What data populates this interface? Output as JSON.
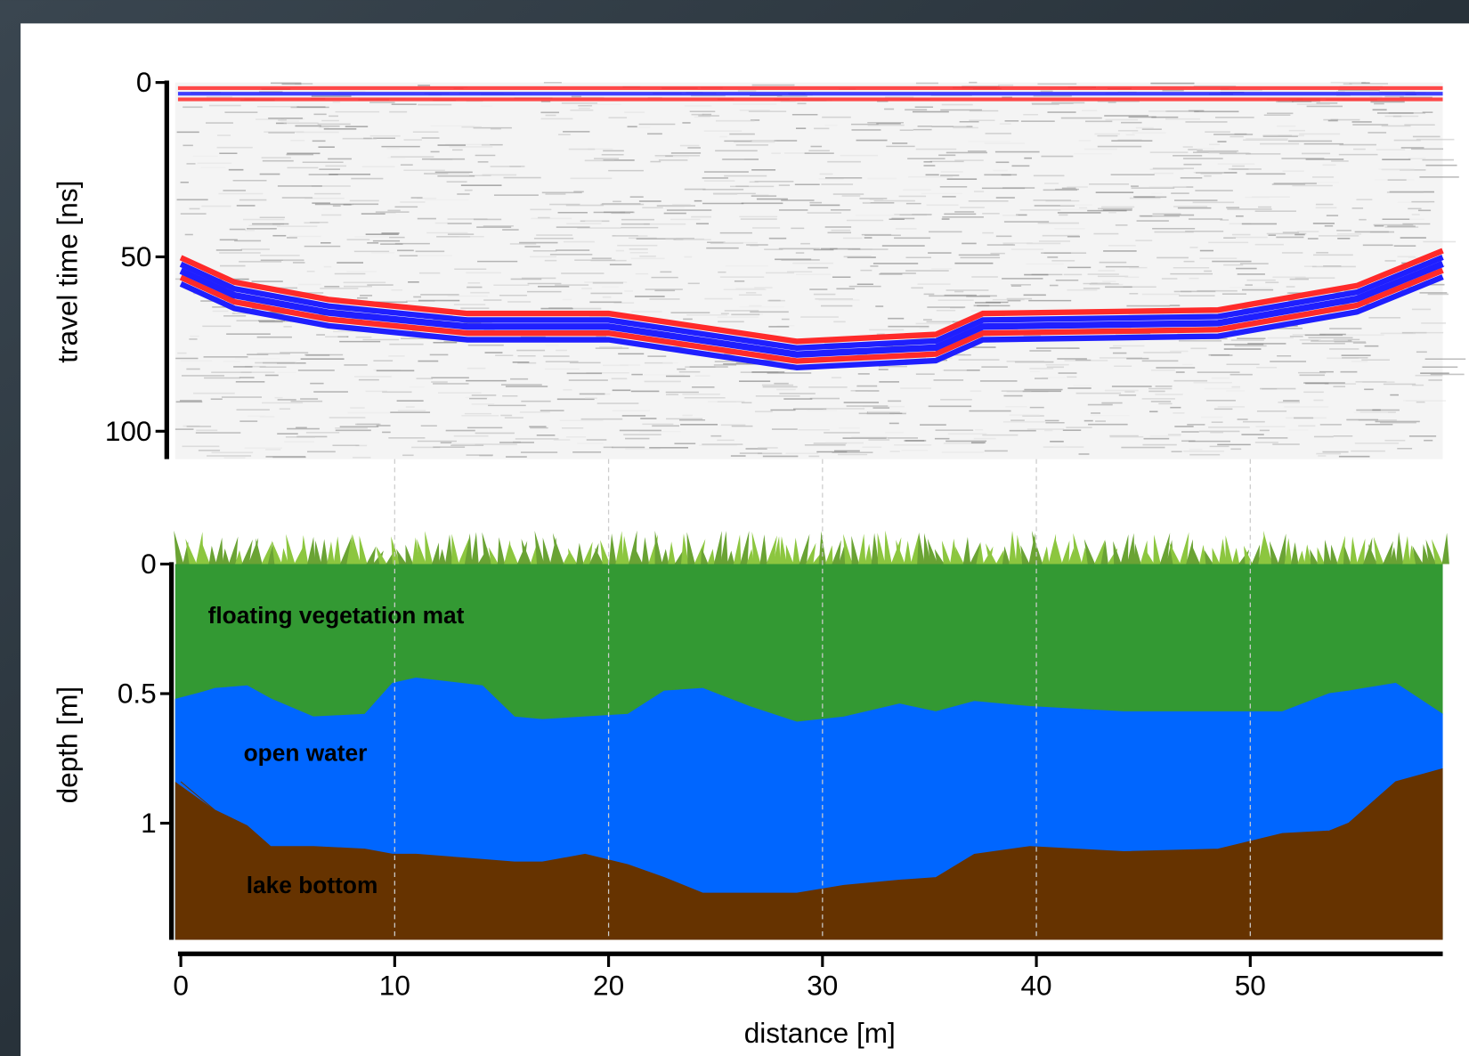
{
  "chart_data": [
    {
      "type": "line",
      "ylabel": "travel time [ns]",
      "xlim": [
        0,
        59
      ],
      "ylim": [
        0,
        108
      ],
      "yticks": [
        0,
        50,
        100
      ],
      "invert_y": true,
      "band_colors": [
        "#ff2a2a",
        "#1f1fff"
      ],
      "x": [
        0,
        2.5,
        6.9,
        13.4,
        20.0,
        28.8,
        35.3,
        37.5,
        48.5,
        55.0,
        59
      ],
      "series": [
        {
          "color": "#1f1fff",
          "values": [
            54,
            61,
            66,
            70,
            70,
            78,
            76,
            70,
            69,
            62,
            52
          ]
        }
      ]
    },
    {
      "type": "area",
      "xlabel": "distance [m]",
      "ylabel": "depth [m]",
      "xlim": [
        0,
        59
      ],
      "ylim": [
        0,
        1.45
      ],
      "xticks": [
        0,
        10,
        20,
        30,
        40,
        50
      ],
      "yticks": [
        0,
        0.5,
        1
      ],
      "invert_y": true,
      "x": [
        0,
        1.6,
        3.1,
        4.2,
        6.2,
        8.6,
        9.9,
        11.0,
        14.1,
        15.6,
        16.9,
        18.9,
        20.9,
        22.6,
        24.4,
        26.6,
        28.8,
        31.0,
        33.6,
        35.3,
        37.1,
        39.7,
        44.1,
        48.5,
        51.5,
        53.7,
        54.6,
        56.8,
        59
      ],
      "series": [
        {
          "name": "floating vegetation mat",
          "color": "#339933",
          "values": [
            0.52,
            0.48,
            0.47,
            0.52,
            0.59,
            0.58,
            0.46,
            0.44,
            0.47,
            0.59,
            0.6,
            0.59,
            0.58,
            0.49,
            0.48,
            0.55,
            0.61,
            0.59,
            0.54,
            0.57,
            0.53,
            0.55,
            0.57,
            0.57,
            0.57,
            0.5,
            0.49,
            0.46,
            0.58
          ]
        },
        {
          "name": "open water",
          "color": "#0066ff",
          "values": [
            0.84,
            0.95,
            1.01,
            1.09,
            1.09,
            1.1,
            1.12,
            1.12,
            1.14,
            1.15,
            1.15,
            1.12,
            1.16,
            1.21,
            1.27,
            1.27,
            1.27,
            1.24,
            1.22,
            1.21,
            1.12,
            1.09,
            1.11,
            1.1,
            1.04,
            1.03,
            1.0,
            0.84,
            0.79
          ]
        },
        {
          "name": "lake bottom",
          "color": "#663300"
        }
      ]
    }
  ]
}
